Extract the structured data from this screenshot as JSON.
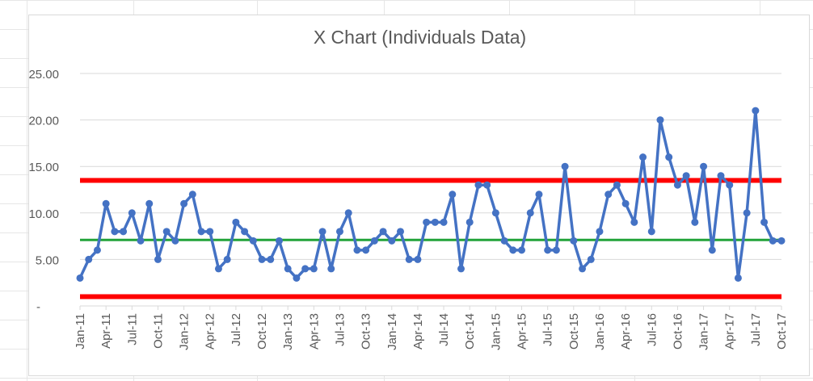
{
  "chart_data": {
    "type": "line",
    "title": "X Chart (Individuals Data)",
    "xlabel": "",
    "ylabel": "",
    "ylim": [
      0,
      25
    ],
    "y_ticks": [
      {
        "value": 0,
        "label": "-"
      },
      {
        "value": 5,
        "label": "5.00"
      },
      {
        "value": 10,
        "label": "10.00"
      },
      {
        "value": 15,
        "label": "15.00"
      },
      {
        "value": 20,
        "label": "20.00"
      },
      {
        "value": 25,
        "label": "25.00"
      }
    ],
    "x_tick_labels": [
      "Jan-11",
      "Apr-11",
      "Jul-11",
      "Oct-11",
      "Jan-12",
      "Apr-12",
      "Jul-12",
      "Oct-12",
      "Jan-13",
      "Apr-13",
      "Jul-13",
      "Oct-13",
      "Jan-14",
      "Apr-14",
      "Jul-14",
      "Oct-14",
      "Jan-15",
      "Apr-15",
      "Jul-15",
      "Oct-15",
      "Jan-16",
      "Apr-16",
      "Jul-16",
      "Oct-16",
      "Jan-17",
      "Apr-17",
      "Jul-17",
      "Oct-17"
    ],
    "grid": "horizontal",
    "legend": "none",
    "colors": {
      "data": "#4472c4",
      "limits": "#ff0000",
      "mean": "#22a33a",
      "grid": "#d9d9d9",
      "text": "#595959"
    },
    "series": [
      {
        "role": "data",
        "x": [
          "Jan-11",
          "Feb-11",
          "Mar-11",
          "Apr-11",
          "May-11",
          "Jun-11",
          "Jul-11",
          "Aug-11",
          "Sep-11",
          "Oct-11",
          "Nov-11",
          "Dec-11",
          "Jan-12",
          "Feb-12",
          "Mar-12",
          "Apr-12",
          "May-12",
          "Jun-12",
          "Jul-12",
          "Aug-12",
          "Sep-12",
          "Oct-12",
          "Nov-12",
          "Dec-12",
          "Jan-13",
          "Feb-13",
          "Mar-13",
          "Apr-13",
          "May-13",
          "Jun-13",
          "Jul-13",
          "Aug-13",
          "Sep-13",
          "Oct-13",
          "Nov-13",
          "Dec-13",
          "Jan-14",
          "Feb-14",
          "Mar-14",
          "Apr-14",
          "May-14",
          "Jun-14",
          "Jul-14",
          "Aug-14",
          "Sep-14",
          "Oct-14",
          "Nov-14",
          "Dec-14",
          "Jan-15",
          "Feb-15",
          "Mar-15",
          "Apr-15",
          "May-15",
          "Jun-15",
          "Jul-15",
          "Aug-15",
          "Sep-15",
          "Oct-15",
          "Nov-15",
          "Dec-15",
          "Jan-16",
          "Feb-16",
          "Mar-16",
          "Apr-16",
          "May-16",
          "Jun-16",
          "Jul-16",
          "Aug-16",
          "Sep-16",
          "Oct-16",
          "Nov-16",
          "Dec-16",
          "Jan-17",
          "Feb-17",
          "Mar-17",
          "Apr-17",
          "May-17",
          "Jun-17",
          "Jul-17",
          "Aug-17",
          "Sep-17",
          "Oct-17"
        ],
        "values": [
          3,
          5,
          6,
          11,
          8,
          8,
          10,
          7,
          11,
          5,
          8,
          7,
          11,
          12,
          8,
          8,
          4,
          5,
          9,
          8,
          7,
          5,
          5,
          7,
          4,
          3,
          4,
          4,
          8,
          4,
          8,
          10,
          6,
          6,
          7,
          8,
          7,
          8,
          5,
          5,
          9,
          9,
          9,
          12,
          4,
          9,
          13,
          13,
          10,
          7,
          6,
          6,
          10,
          12,
          6,
          6,
          15,
          7,
          4,
          5,
          8,
          12,
          13,
          11,
          9,
          16,
          8,
          20,
          16,
          13,
          14,
          9,
          15,
          6,
          14,
          13,
          3,
          10,
          21,
          9,
          7,
          7
        ]
      },
      {
        "role": "mean",
        "values": [
          7.1,
          7.1
        ]
      },
      {
        "role": "upper-limit",
        "values": [
          13.5,
          13.5
        ]
      },
      {
        "role": "lower-limit",
        "values": [
          1.0,
          1.0
        ]
      }
    ]
  }
}
